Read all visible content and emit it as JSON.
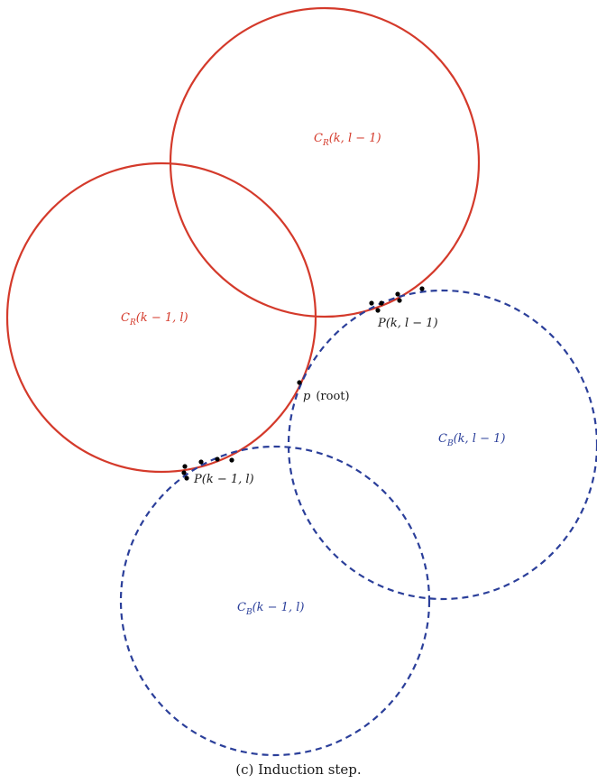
{
  "colors": {
    "red": "#d43a2b",
    "blue": "#2b3f9a",
    "point": "#000000",
    "text": "#1a1a1a"
  },
  "circles": {
    "cr_k_lm1": {
      "label": "C_R(k, l − 1)",
      "label_main": "C",
      "label_sub": "R",
      "label_args": "(k, l − 1)"
    },
    "cr_km1_l": {
      "label": "C_R(k − 1, l)",
      "label_main": "C",
      "label_sub": "R",
      "label_args": "(k − 1, l)"
    },
    "cb_k_lm1": {
      "label": "C_B(k, l − 1)",
      "label_main": "C",
      "label_sub": "B",
      "label_args": "(k, l − 1)"
    },
    "cb_km1_l": {
      "label": "C_B(k − 1, l)",
      "label_main": "C",
      "label_sub": "B",
      "label_args": "(k − 1, l)"
    }
  },
  "points": {
    "p_label": "p",
    "root_label": "(root)",
    "set_k_lm1": "P(k, l − 1)",
    "set_km1_l": "P(k − 1, l)"
  },
  "caption": "(c) Induction step."
}
